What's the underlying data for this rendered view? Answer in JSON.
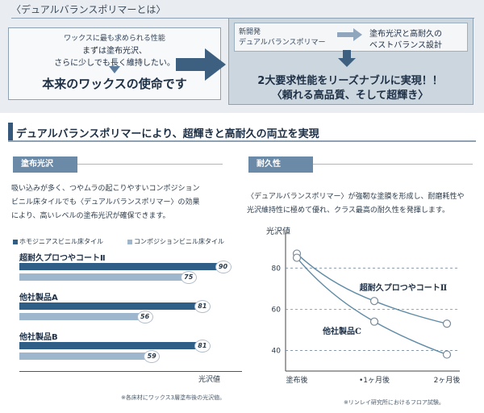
{
  "header": {
    "title": "〈デュアルバランスポリマーとは〉"
  },
  "left_box": {
    "line1": "ワックスに最も求められる性能",
    "line2": "まずは塗布光沢、",
    "line3": "さらに少しでも長く維持したい。",
    "mission": "本来のワックスの使命です"
  },
  "right_box": {
    "new_line1": "新開発",
    "new_line2": "デュアルバランスポリマー",
    "result_line1": "塗布光沢と高耐久の",
    "result_line2": "ベストバランス設計",
    "headline1": "2大要求性能をリーズナブルに実現！！",
    "headline2": "〈頼れる高品質、そして超輝き〉"
  },
  "section": {
    "title": "デュアルバランスポリマーにより、超輝きと高耐久の両立を実現"
  },
  "gloss_panel": {
    "tab": "塗布光沢",
    "text": [
      "吸い込みが多く、つやムラの起こりやすいコンポジション",
      "ビニル床タイルでも〈デュアルバランスポリマー〉の効果",
      "により、高いレベルの塗布光沢が確保できます。"
    ],
    "legend_homo": "ホモジニアスビニル床タイル",
    "legend_comp": "コンポジションビニル床タイル",
    "axis_label": "光沢値",
    "note": "※各床材にワックス3層塗布後の光沢値。"
  },
  "durability_panel": {
    "tab": "耐久性",
    "text": [
      "〈デュアルバランスポリマー〉が強靭な塗膜を形成し、耐磨耗性や",
      "光沢維持性に極めて優れ、クラス最高の耐久性を発揮します。"
    ],
    "note": "※リンレイ研究所におけるフロア試験。"
  },
  "colors": {
    "dark_bar": "#2f5f86",
    "light_bar": "#9fb7cc",
    "tab": "#6b8aa8",
    "curve": "#5f8ba6"
  },
  "chart_data": [
    {
      "type": "bar",
      "orientation": "horizontal",
      "categories": [
        "超耐久プロつやコートⅡ",
        "他社製品A",
        "他社製品B"
      ],
      "series": [
        {
          "name": "ホモジニアスビニル床タイル",
          "values": [
            90,
            81,
            81
          ]
        },
        {
          "name": "コンポジションビニル床タイル",
          "values": [
            75,
            56,
            59
          ]
        }
      ],
      "xlabel": "光沢値",
      "xlim": [
        0,
        100
      ]
    },
    {
      "type": "line",
      "x": [
        "塗布後",
        "1ヶ月後",
        "2ヶ月後"
      ],
      "series": [
        {
          "name": "超耐久プロつやコートⅡ",
          "values": [
            87,
            64,
            53
          ]
        },
        {
          "name": "他社製品C",
          "values": [
            85,
            54,
            38
          ]
        }
      ],
      "ylabel": "光沢値",
      "yticks": [
        40,
        60,
        80
      ],
      "ylim": [
        30,
        95
      ],
      "grid": true
    }
  ]
}
